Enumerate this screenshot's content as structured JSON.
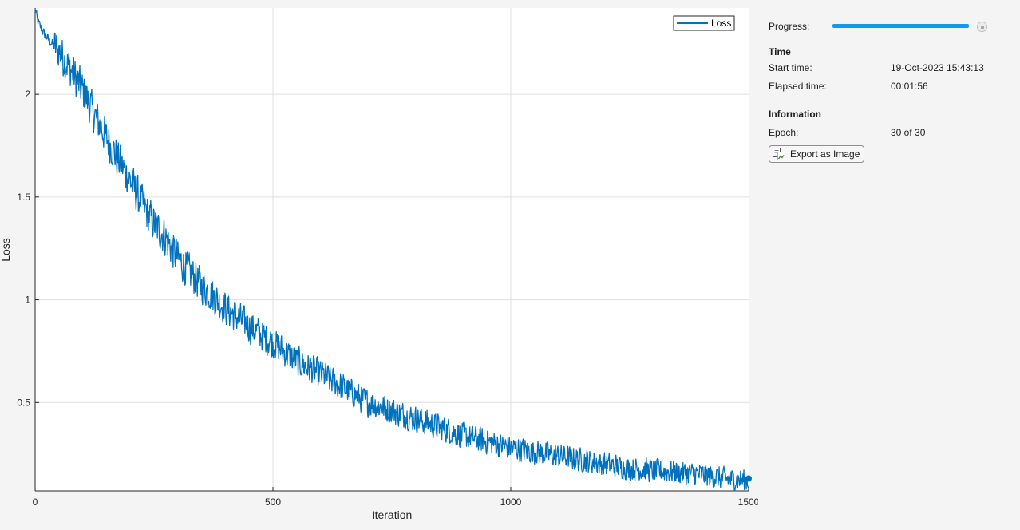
{
  "chart_data": {
    "type": "line",
    "xlabel": "Iteration",
    "ylabel": "Loss",
    "xlim": [
      0,
      1500
    ],
    "ylim": [
      0.07,
      2.42
    ],
    "xticks": [
      0,
      500,
      1000,
      1500
    ],
    "xtick_labels": [
      "0",
      "500",
      "1000",
      "1500"
    ],
    "yticks": [
      0.5,
      1,
      1.5,
      2
    ],
    "ytick_labels": [
      "0.5",
      "1",
      "1.5",
      "2"
    ],
    "grid": true,
    "legend": {
      "position": "top-right",
      "entries": [
        "Loss"
      ]
    },
    "series": [
      {
        "name": "Loss",
        "color": "#0072bd",
        "trend_x": [
          0,
          5,
          15,
          30,
          50,
          75,
          100,
          125,
          150,
          175,
          200,
          225,
          250,
          275,
          300,
          350,
          400,
          450,
          500,
          550,
          600,
          650,
          700,
          750,
          800,
          850,
          900,
          950,
          1000,
          1050,
          1100,
          1150,
          1200,
          1250,
          1300,
          1350,
          1400,
          1450,
          1500
        ],
        "trend_y": [
          2.42,
          2.36,
          2.31,
          2.26,
          2.21,
          2.12,
          2.02,
          1.9,
          1.79,
          1.68,
          1.58,
          1.47,
          1.37,
          1.3,
          1.2,
          1.07,
          0.96,
          0.87,
          0.79,
          0.7,
          0.64,
          0.57,
          0.5,
          0.46,
          0.42,
          0.38,
          0.34,
          0.31,
          0.28,
          0.26,
          0.24,
          0.22,
          0.2,
          0.18,
          0.17,
          0.16,
          0.15,
          0.13,
          0.12
        ],
        "noise_amplitude": 0.09,
        "final_value": 0.13
      }
    ]
  },
  "panel": {
    "progress_label": "Progress:",
    "progress_value": 1.0,
    "time_title": "Time",
    "start_time_label": "Start time:",
    "start_time_value": "19-Oct-2023 15:43:13",
    "elapsed_time_label": "Elapsed time:",
    "elapsed_time_value": "00:01:56",
    "information_title": "Information",
    "epoch_label": "Epoch:",
    "epoch_value": "30 of 30",
    "export_label": "Export as Image",
    "export_icon": "export-image-icon",
    "stop_icon": "stop-icon",
    "progress_color": "#0f9af0"
  }
}
